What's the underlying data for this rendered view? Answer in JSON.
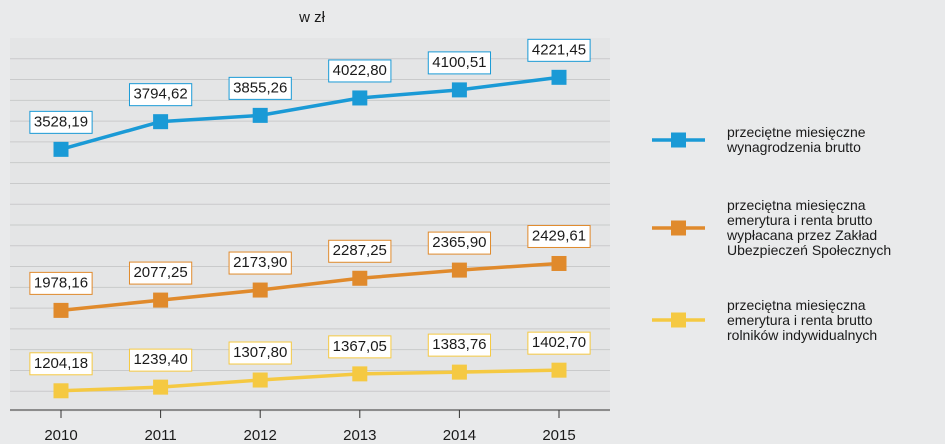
{
  "chart_data": {
    "type": "line",
    "title": "w zł",
    "categories": [
      "2010",
      "2011",
      "2012",
      "2013",
      "2014",
      "2015"
    ],
    "ylim": [
      1000,
      4600
    ],
    "grid": true,
    "series": [
      {
        "name": "przeciętne miesięczne wynagrodzenia brutto",
        "color": "#1a9ad6",
        "values": [
          3528.19,
          3794.62,
          3855.26,
          4022.8,
          4100.51,
          4221.45
        ],
        "value_labels": [
          "3528,19",
          "3794,62",
          "3855,26",
          "4022,80",
          "4100,51",
          "4221,45"
        ]
      },
      {
        "name": "przeciętna miesięczna emerytura i renta brutto wypłacana przez Zakład Ubezpieczeń Społecznych",
        "color": "#e08a2c",
        "values": [
          1978.16,
          2077.25,
          2173.9,
          2287.25,
          2365.9,
          2429.61
        ],
        "value_labels": [
          "1978,16",
          "2077,25",
          "2173,90",
          "2287,25",
          "2365,90",
          "2429,61"
        ]
      },
      {
        "name": "przeciętna miesięczna emerytura i renta brutto rolników indywidualnych",
        "color": "#f5c942",
        "values": [
          1204.18,
          1239.4,
          1307.8,
          1367.05,
          1383.76,
          1402.7
        ],
        "value_labels": [
          "1204,18",
          "1239,40",
          "1307,80",
          "1367,05",
          "1383,76",
          "1402,70"
        ]
      }
    ]
  }
}
